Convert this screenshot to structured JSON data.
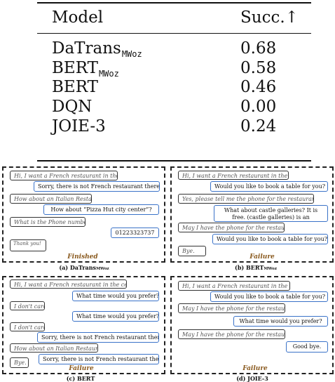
{
  "table": {
    "header": {
      "model": "Model",
      "succ": "Succ.↑"
    },
    "rows": [
      {
        "model": "DaTrans",
        "sub": "MWoz",
        "succ": "0.68"
      },
      {
        "model": "BERT",
        "sub": "MWoz",
        "succ": "0.58"
      },
      {
        "model": "BERT",
        "sub": "",
        "succ": "0.46"
      },
      {
        "model": "DQN",
        "sub": "",
        "succ": "0.00"
      },
      {
        "model": "JOIE-3",
        "sub": "",
        "succ": "0.24"
      }
    ]
  },
  "panels": {
    "a": {
      "caption": "(a) DaTrans",
      "caption_sub": "MWoz",
      "status": "Finished",
      "turns": [
        "Hi, I want a French restaurant in the center.",
        "Sorry, there is not French restaurant there.",
        "How about an Italian Restaurant?",
        "How about “Pizza Hut city center”?",
        "What is the Phone number?",
        "01223323737",
        "Thank you!"
      ]
    },
    "b": {
      "caption": "(b) BERT",
      "caption_sub": "MWoz",
      "status": "Failure",
      "turns": [
        "Hi, I want a French restaurant in the center.",
        "Would you like to book a table for you?",
        "Yes, please tell me the phone for the restaurant.",
        "What about castle galleries? It is free. (castle galleries) is an Attraction name.",
        "May I have the phone for the restaurant?",
        "Would you like to book a table for you?",
        "Bye."
      ]
    },
    "c": {
      "caption": "(c) BERT",
      "caption_sub": "",
      "status": "Failure",
      "turns": [
        "Hi, I want a French restaurant in the center.",
        "What time would you prefer?",
        "I don't care.",
        "What time would you prefer?",
        "I don't care.",
        "Sorry, there is not French restaurant there.",
        "How about an Italian Restaurant?",
        "Sorry, there is not French restaurant there.",
        "Bye."
      ]
    },
    "d": {
      "caption": "(d) JOIE-3",
      "caption_sub": "",
      "status": "Failure",
      "turns": [
        "Hi, I want a French restaurant in the center.",
        "Would you like to book a table for you?",
        "May I have the phone for the restaurant?",
        "What time would you prefer?",
        "May I have the phone for the restaurant?",
        "Good bye."
      ]
    }
  }
}
